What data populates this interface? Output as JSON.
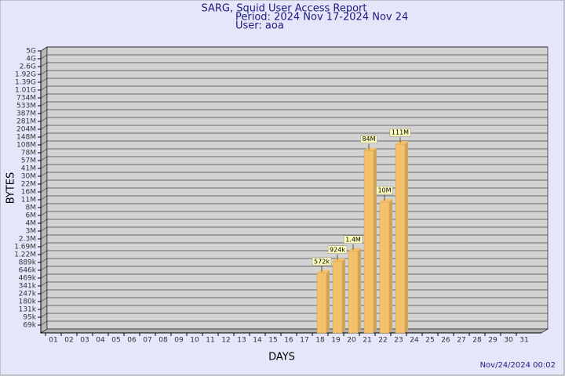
{
  "chart_data": {
    "type": "bar",
    "title": "SARG, Squid User Access Report",
    "subtitle": "Period: 2024 Nov 17-2024 Nov 24",
    "user": "User: aoa",
    "xlabel": "DAYS",
    "ylabel": "BYTES",
    "footer": "Nov/24/2024 00:02",
    "categories": [
      "01",
      "02",
      "03",
      "04",
      "05",
      "06",
      "07",
      "08",
      "09",
      "10",
      "11",
      "12",
      "13",
      "14",
      "15",
      "16",
      "17",
      "18",
      "19",
      "20",
      "21",
      "22",
      "23",
      "24",
      "25",
      "26",
      "27",
      "28",
      "29",
      "30",
      "31"
    ],
    "values": [
      null,
      null,
      null,
      null,
      null,
      null,
      null,
      null,
      null,
      null,
      null,
      null,
      null,
      null,
      null,
      null,
      null,
      572000,
      924000,
      1400000,
      84000000,
      10000000,
      111000000,
      null,
      null,
      null,
      null,
      null,
      null,
      null,
      null
    ],
    "value_labels": [
      null,
      null,
      null,
      null,
      null,
      null,
      null,
      null,
      null,
      null,
      null,
      null,
      null,
      null,
      null,
      null,
      null,
      "572k",
      "924k",
      "1.4M",
      "84M",
      "10M",
      "111M",
      null,
      null,
      null,
      null,
      null,
      null,
      null,
      null
    ],
    "color": "#f5c26b",
    "ylim": [
      0,
      5000000000
    ],
    "yticks": [
      {
        "value": 69000,
        "label": "69k"
      },
      {
        "value": 95000,
        "label": "95k"
      },
      {
        "value": 131000,
        "label": "131k"
      },
      {
        "value": 180000,
        "label": "180k"
      },
      {
        "value": 247000,
        "label": "247k"
      },
      {
        "value": 341000,
        "label": "341k"
      },
      {
        "value": 469000,
        "label": "469k"
      },
      {
        "value": 646000,
        "label": "646k"
      },
      {
        "value": 889000,
        "label": "889k"
      },
      {
        "value": 1220000,
        "label": "1.22M"
      },
      {
        "value": 1690000,
        "label": "1.69M"
      },
      {
        "value": 2300000,
        "label": "2.3M"
      },
      {
        "value": 3000000,
        "label": "3M"
      },
      {
        "value": 4000000,
        "label": "4M"
      },
      {
        "value": 6000000,
        "label": "6M"
      },
      {
        "value": 8000000,
        "label": "8M"
      },
      {
        "value": 11000000,
        "label": "11M"
      },
      {
        "value": 16000000,
        "label": "16M"
      },
      {
        "value": 22000000,
        "label": "22M"
      },
      {
        "value": 30000000,
        "label": "30M"
      },
      {
        "value": 41000000,
        "label": "41M"
      },
      {
        "value": 57000000,
        "label": "57M"
      },
      {
        "value": 78000000,
        "label": "78M"
      },
      {
        "value": 108000000,
        "label": "108M"
      },
      {
        "value": 148000000,
        "label": "148M"
      },
      {
        "value": 204000000,
        "label": "204M"
      },
      {
        "value": 281000000,
        "label": "281M"
      },
      {
        "value": 387000000,
        "label": "387M"
      },
      {
        "value": 533000000,
        "label": "533M"
      },
      {
        "value": 734000000,
        "label": "734M"
      },
      {
        "value": 1010000000,
        "label": "1.01G"
      },
      {
        "value": 1390000000,
        "label": "1.39G"
      },
      {
        "value": 1920000000,
        "label": "1.92G"
      },
      {
        "value": 2600000000,
        "label": "2.6G"
      },
      {
        "value": 4000000000,
        "label": "4G"
      },
      {
        "value": 5000000000,
        "label": "5G"
      }
    ],
    "grid": true
  }
}
